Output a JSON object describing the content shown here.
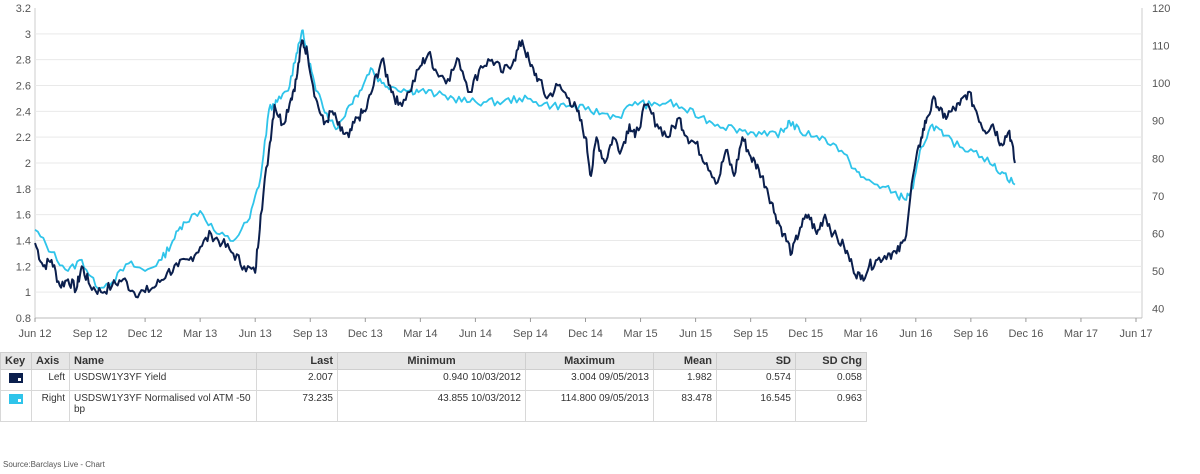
{
  "chart_data": {
    "type": "line",
    "x_tick_labels": [
      "Jun 12",
      "Sep 12",
      "Dec 12",
      "Mar 13",
      "Jun 13",
      "Sep 13",
      "Dec 13",
      "Mar 14",
      "Jun 14",
      "Sep 14",
      "Dec 14",
      "Mar 15",
      "Jun 15",
      "Sep 15",
      "Dec 15",
      "Mar 16",
      "Jun 16",
      "Sep 16",
      "Dec 16",
      "Mar 17",
      "Jun 17"
    ],
    "y_left": {
      "ticks": [
        "0.8",
        "1",
        "1.2",
        "1.4",
        "1.6",
        "1.8",
        "2",
        "2.2",
        "2.4",
        "2.6",
        "2.8",
        "3",
        "3.2"
      ],
      "range": [
        0.8,
        3.2
      ]
    },
    "y_right": {
      "ticks": [
        "40",
        "50",
        "60",
        "70",
        "80",
        "90",
        "100",
        "110",
        "120"
      ],
      "range": [
        37.5,
        120
      ]
    },
    "grid": "horizontal",
    "series": [
      {
        "name": "USDSW1Y3YF Yield",
        "axis": "left",
        "color": "#0b1f4d",
        "points": [
          [
            0,
            1.38
          ],
          [
            0.15,
            1.2
          ],
          [
            0.3,
            1.25
          ],
          [
            0.45,
            1.05
          ],
          [
            0.6,
            1.1
          ],
          [
            0.75,
            1.02
          ],
          [
            0.85,
            1.2
          ],
          [
            1.0,
            1.05
          ],
          [
            1.2,
            1.0
          ],
          [
            1.4,
            1.05
          ],
          [
            1.6,
            1.1
          ],
          [
            1.8,
            1.0
          ],
          [
            2.0,
            1.0
          ],
          [
            2.2,
            1.05
          ],
          [
            2.4,
            1.15
          ],
          [
            2.6,
            1.2
          ],
          [
            2.8,
            1.25
          ],
          [
            3.0,
            1.35
          ],
          [
            3.2,
            1.45
          ],
          [
            3.4,
            1.38
          ],
          [
            3.6,
            1.3
          ],
          [
            3.8,
            1.2
          ],
          [
            4.0,
            1.15
          ],
          [
            4.1,
            1.6
          ],
          [
            4.25,
            2.1
          ],
          [
            4.35,
            2.45
          ],
          [
            4.5,
            2.3
          ],
          [
            4.65,
            2.5
          ],
          [
            4.75,
            2.65
          ],
          [
            4.85,
            2.95
          ],
          [
            4.95,
            2.85
          ],
          [
            5.1,
            2.5
          ],
          [
            5.25,
            2.3
          ],
          [
            5.4,
            2.4
          ],
          [
            5.55,
            2.25
          ],
          [
            5.7,
            2.2
          ],
          [
            5.85,
            2.35
          ],
          [
            6.0,
            2.4
          ],
          [
            6.15,
            2.6
          ],
          [
            6.3,
            2.8
          ],
          [
            6.45,
            2.6
          ],
          [
            6.6,
            2.45
          ],
          [
            6.8,
            2.55
          ],
          [
            7.0,
            2.75
          ],
          [
            7.15,
            2.85
          ],
          [
            7.3,
            2.7
          ],
          [
            7.5,
            2.65
          ],
          [
            7.7,
            2.8
          ],
          [
            7.9,
            2.55
          ],
          [
            8.1,
            2.75
          ],
          [
            8.3,
            2.8
          ],
          [
            8.5,
            2.7
          ],
          [
            8.7,
            2.8
          ],
          [
            8.85,
            2.95
          ],
          [
            9.0,
            2.75
          ],
          [
            9.15,
            2.65
          ],
          [
            9.3,
            2.5
          ],
          [
            9.5,
            2.6
          ],
          [
            9.7,
            2.5
          ],
          [
            9.85,
            2.4
          ],
          [
            10.0,
            2.2
          ],
          [
            10.1,
            1.9
          ],
          [
            10.2,
            2.2
          ],
          [
            10.35,
            2.0
          ],
          [
            10.5,
            2.2
          ],
          [
            10.65,
            2.1
          ],
          [
            10.8,
            2.3
          ],
          [
            10.9,
            2.2
          ],
          [
            11.1,
            2.45
          ],
          [
            11.3,
            2.3
          ],
          [
            11.5,
            2.2
          ],
          [
            11.7,
            2.35
          ],
          [
            11.85,
            2.2
          ],
          [
            12.0,
            2.15
          ],
          [
            12.2,
            2.0
          ],
          [
            12.4,
            1.85
          ],
          [
            12.55,
            2.1
          ],
          [
            12.7,
            1.9
          ],
          [
            12.85,
            2.2
          ],
          [
            13.0,
            2.05
          ],
          [
            13.15,
            1.95
          ],
          [
            13.3,
            1.8
          ],
          [
            13.45,
            1.6
          ],
          [
            13.6,
            1.45
          ],
          [
            13.75,
            1.3
          ],
          [
            13.9,
            1.5
          ],
          [
            14.05,
            1.6
          ],
          [
            14.2,
            1.45
          ],
          [
            14.35,
            1.6
          ],
          [
            14.5,
            1.45
          ],
          [
            14.7,
            1.35
          ],
          [
            14.85,
            1.2
          ],
          [
            15.0,
            1.1
          ],
          [
            15.15,
            1.2
          ],
          [
            15.3,
            1.25
          ],
          [
            15.5,
            1.3
          ],
          [
            15.65,
            1.3
          ],
          [
            15.8,
            1.4
          ],
          [
            15.95,
            1.9
          ],
          [
            16.1,
            2.2
          ],
          [
            16.2,
            2.35
          ],
          [
            16.35,
            2.5
          ],
          [
            16.5,
            2.35
          ],
          [
            16.65,
            2.4
          ],
          [
            16.8,
            2.45
          ],
          [
            16.95,
            2.55
          ],
          [
            17.1,
            2.4
          ],
          [
            17.25,
            2.25
          ],
          [
            17.4,
            2.3
          ],
          [
            17.55,
            2.15
          ],
          [
            17.7,
            2.25
          ],
          [
            17.8,
            2.0
          ]
        ]
      },
      {
        "name": "USDSW1Y3YF Normalised vol ATM -50 bp",
        "axis": "right",
        "color": "#2fc4ea",
        "points": [
          [
            0,
            61
          ],
          [
            0.3,
            55
          ],
          [
            0.6,
            50
          ],
          [
            0.85,
            53
          ],
          [
            1.1,
            46
          ],
          [
            1.4,
            47
          ],
          [
            1.7,
            52
          ],
          [
            2.0,
            50
          ],
          [
            2.3,
            53
          ],
          [
            2.5,
            58
          ],
          [
            2.7,
            63
          ],
          [
            3.0,
            66
          ],
          [
            3.3,
            60
          ],
          [
            3.6,
            58
          ],
          [
            3.9,
            64
          ],
          [
            4.1,
            75
          ],
          [
            4.25,
            93
          ],
          [
            4.4,
            95
          ],
          [
            4.6,
            98
          ],
          [
            4.75,
            108
          ],
          [
            4.85,
            114
          ],
          [
            4.95,
            108
          ],
          [
            5.1,
            98
          ],
          [
            5.3,
            92
          ],
          [
            5.5,
            88
          ],
          [
            5.7,
            94
          ],
          [
            5.9,
            98
          ],
          [
            6.1,
            104
          ],
          [
            6.3,
            100
          ],
          [
            6.5,
            99
          ],
          [
            6.8,
            98
          ],
          [
            7.0,
            98
          ],
          [
            7.3,
            97
          ],
          [
            7.6,
            96
          ],
          [
            7.9,
            95
          ],
          [
            8.2,
            95
          ],
          [
            8.5,
            95
          ],
          [
            8.8,
            96
          ],
          [
            9.1,
            95
          ],
          [
            9.4,
            94
          ],
          [
            9.7,
            94
          ],
          [
            10.0,
            93
          ],
          [
            10.3,
            92
          ],
          [
            10.6,
            91
          ],
          [
            10.9,
            95
          ],
          [
            11.2,
            94
          ],
          [
            11.5,
            95
          ],
          [
            11.8,
            93
          ],
          [
            12.1,
            91
          ],
          [
            12.4,
            89
          ],
          [
            12.7,
            88
          ],
          [
            13.0,
            87
          ],
          [
            13.3,
            86
          ],
          [
            13.6,
            87
          ],
          [
            13.7,
            90
          ],
          [
            13.9,
            87
          ],
          [
            14.2,
            86
          ],
          [
            14.5,
            84
          ],
          [
            14.8,
            79
          ],
          [
            15.0,
            75
          ],
          [
            15.3,
            73
          ],
          [
            15.6,
            71
          ],
          [
            15.8,
            69
          ],
          [
            15.95,
            72
          ],
          [
            16.1,
            83
          ],
          [
            16.3,
            89
          ],
          [
            16.5,
            86
          ],
          [
            16.8,
            83
          ],
          [
            17.1,
            82
          ],
          [
            17.4,
            78
          ],
          [
            17.6,
            76
          ],
          [
            17.8,
            73
          ]
        ]
      }
    ]
  },
  "legend": {
    "headers": {
      "key": "Key",
      "axis": "Axis",
      "name": "Name",
      "last": "Last",
      "minimum": "Minimum",
      "maximum": "Maximum",
      "mean": "Mean",
      "sd": "SD",
      "sd_chg": "SD Chg"
    },
    "rows": [
      {
        "axis": "Left",
        "name": "USDSW1Y3YF Yield",
        "last": "2.007",
        "minimum": "0.940 10/03/2012",
        "maximum": "3.004 09/05/2013",
        "mean": "1.982",
        "sd": "0.574",
        "sd_chg": "0.058",
        "color": "#0b1f4d"
      },
      {
        "axis": "Right",
        "name": "USDSW1Y3YF Normalised vol ATM -50 bp",
        "last": "73.235",
        "minimum": "43.855 10/03/2012",
        "maximum": "114.800 09/05/2013",
        "mean": "83.478",
        "sd": "16.545",
        "sd_chg": "0.963",
        "color": "#2fc4ea"
      }
    ]
  },
  "source": "Source:Barclays Live - Chart"
}
